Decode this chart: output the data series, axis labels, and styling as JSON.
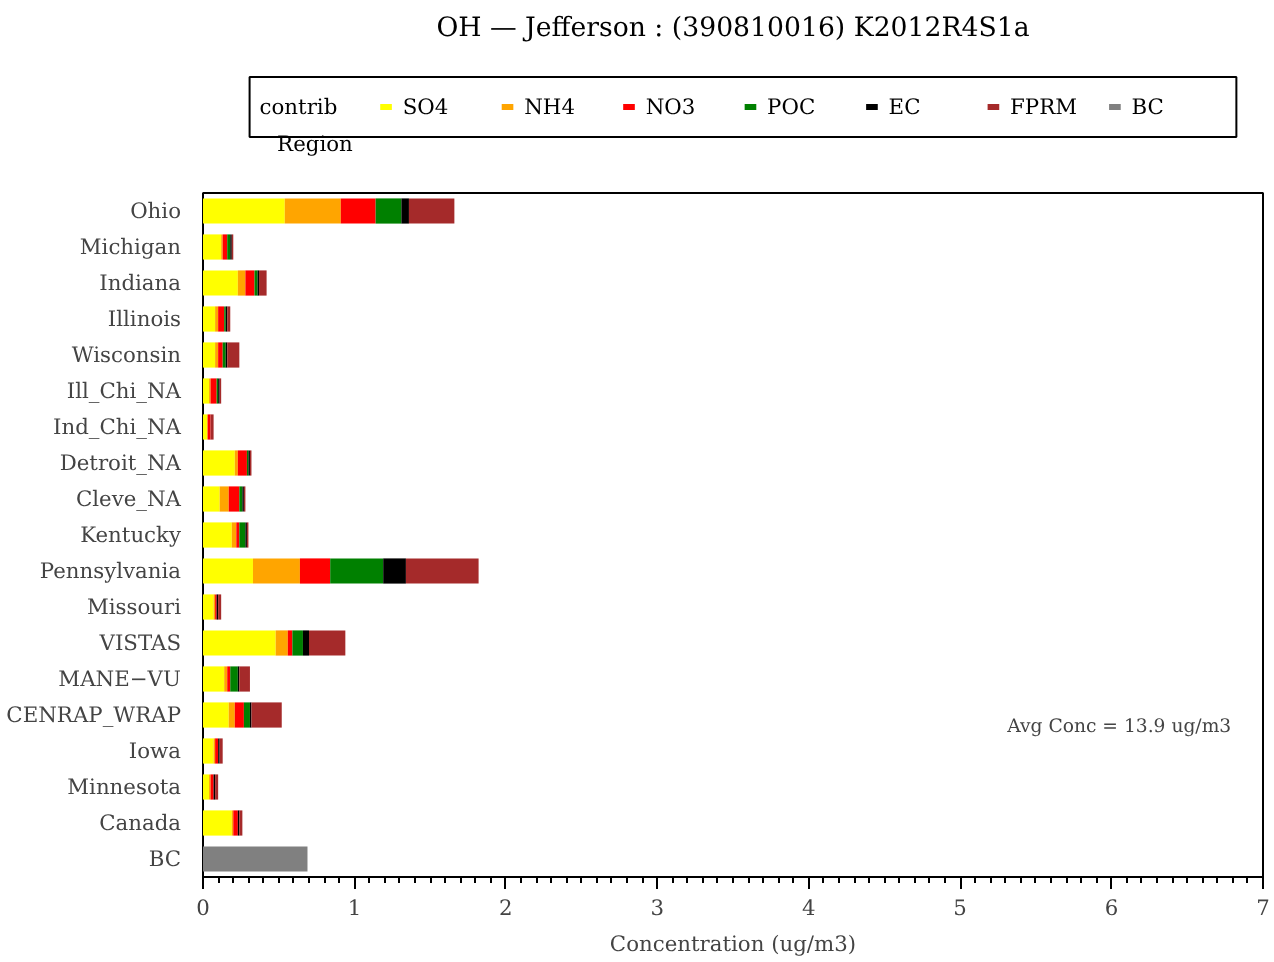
{
  "chart_data": {
    "type": "bar",
    "orientation": "horizontal",
    "stacked": true,
    "title": "OH — Jefferson : (390810016) K2012R4S1a",
    "xlabel": "Concentration (ug/m3)",
    "ylabel": "Region",
    "legend_title": "contrib",
    "categories": [
      "Ohio",
      "Michigan",
      "Indiana",
      "Illinois",
      "Wisconsin",
      "Ill_Chi_NA",
      "Ind_Chi_NA",
      "Detroit_NA",
      "Cleve_NA",
      "Kentucky",
      "Pennsylvania",
      "Missouri",
      "VISTAS",
      "MANE−VU",
      "CENRAP_WRAP",
      "Iowa",
      "Minnesota",
      "Canada",
      "BC"
    ],
    "series": [
      {
        "name": "SO4",
        "color": "#ffff00",
        "values": [
          0.54,
          0.12,
          0.23,
          0.08,
          0.08,
          0.04,
          0.03,
          0.21,
          0.11,
          0.19,
          0.33,
          0.07,
          0.48,
          0.14,
          0.17,
          0.07,
          0.04,
          0.19,
          0
        ]
      },
      {
        "name": "NH4",
        "color": "#ffa500",
        "values": [
          0.37,
          0.01,
          0.05,
          0.02,
          0.02,
          0.01,
          0,
          0.02,
          0.06,
          0.03,
          0.31,
          0.01,
          0.08,
          0.02,
          0.04,
          0.01,
          0.01,
          0.01,
          0
        ]
      },
      {
        "name": "NO3",
        "color": "#ff0000",
        "values": [
          0.23,
          0.03,
          0.06,
          0.04,
          0.03,
          0.04,
          0.02,
          0.06,
          0.07,
          0.02,
          0.2,
          0.01,
          0.03,
          0.02,
          0.06,
          0.02,
          0.02,
          0.03,
          0
        ]
      },
      {
        "name": "POC",
        "color": "#008000",
        "values": [
          0.17,
          0.02,
          0.02,
          0.01,
          0.02,
          0.01,
          0,
          0.01,
          0.02,
          0.04,
          0.35,
          0,
          0.07,
          0.05,
          0.04,
          0,
          0,
          0,
          0
        ]
      },
      {
        "name": "EC",
        "color": "#000000",
        "values": [
          0.05,
          0.01,
          0.01,
          0.01,
          0.01,
          0.01,
          0,
          0.01,
          0.01,
          0.01,
          0.15,
          0.01,
          0.04,
          0.01,
          0.01,
          0.01,
          0.01,
          0.01,
          0
        ]
      },
      {
        "name": "FPRM",
        "color": "#a52a2a",
        "values": [
          0.3,
          0.01,
          0.05,
          0.02,
          0.08,
          0.01,
          0.02,
          0.01,
          0.01,
          0.01,
          0.48,
          0.02,
          0.24,
          0.07,
          0.2,
          0.02,
          0.02,
          0.02,
          0
        ]
      },
      {
        "name": "BC",
        "color": "#808080",
        "values": [
          0,
          0,
          0,
          0,
          0,
          0,
          0,
          0,
          0,
          0,
          0,
          0,
          0,
          0,
          0,
          0,
          0,
          0,
          0.69
        ]
      }
    ],
    "xlim": [
      0,
      7
    ],
    "xticks": [
      0,
      1,
      2,
      3,
      4,
      5,
      6,
      7
    ],
    "grid": false,
    "legend": "top",
    "annotations": [
      "Avg Conc = 13.9 ug/m3"
    ]
  }
}
